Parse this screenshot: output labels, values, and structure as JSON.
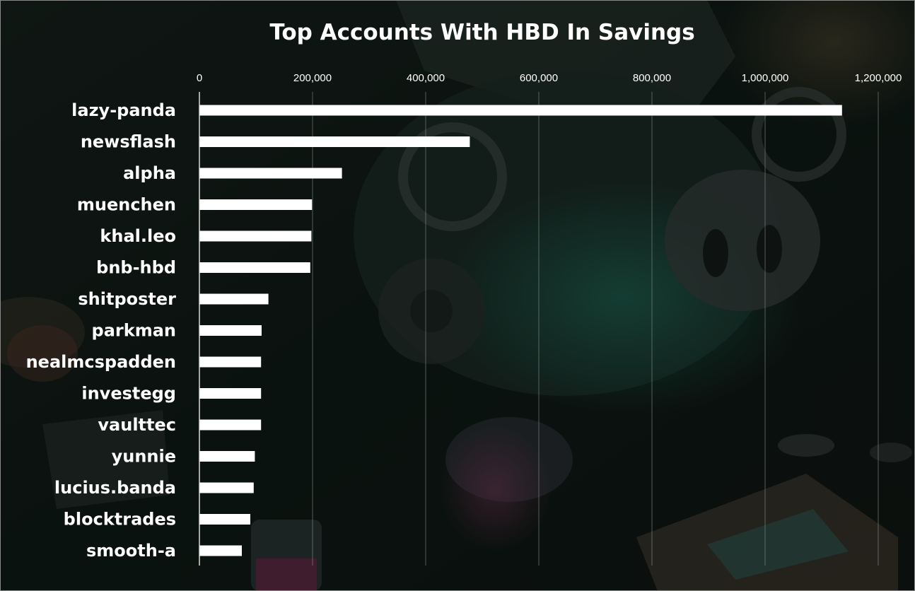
{
  "chart_data": {
    "type": "bar",
    "orientation": "horizontal",
    "title": "Top Accounts With HBD In Savings",
    "xlabel": "",
    "ylabel": "",
    "xlim": [
      0,
      1200000
    ],
    "x_ticks": [
      0,
      200000,
      400000,
      600000,
      800000,
      1000000,
      1200000
    ],
    "x_tick_labels": [
      "0",
      "200,000",
      "400,000",
      "600,000",
      "800,000",
      "1,000,000",
      "1,200,000"
    ],
    "x_axis_position": "top",
    "grid": true,
    "legend": "none",
    "bar_color": "#ffffff",
    "categories": [
      "lazy-panda",
      "newsflash",
      "alpha",
      "muenchen",
      "khal.leo",
      "bnb-hbd",
      "shitposter",
      "parkman",
      "nealmcspadden",
      "investegg",
      "vaulttec",
      "yunnie",
      "lucius.banda",
      "blocktrades",
      "smooth-a"
    ],
    "values": [
      1136000,
      478000,
      252000,
      199000,
      198000,
      196000,
      122000,
      110000,
      109000,
      109000,
      109000,
      98000,
      96000,
      90000,
      75000
    ]
  }
}
